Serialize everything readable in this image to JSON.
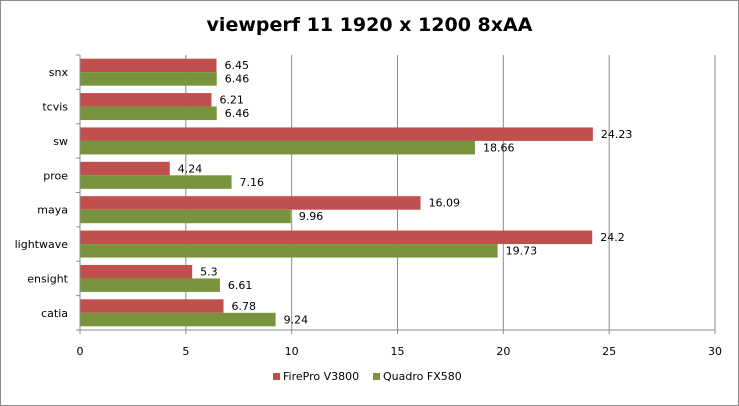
{
  "chart_data": {
    "type": "bar",
    "orientation": "horizontal",
    "title": "viewperf 11 1920 x 1200 8xAA",
    "categories": [
      "snx",
      "tcvis",
      "sw",
      "proe",
      "maya",
      "lightwave",
      "ensight",
      "catia"
    ],
    "series": [
      {
        "name": "FirePro V3800",
        "color": "#c0504d",
        "values": [
          6.45,
          6.21,
          24.23,
          4.24,
          16.09,
          24.2,
          5.3,
          6.78
        ]
      },
      {
        "name": "Quadro FX580",
        "color": "#77933c",
        "values": [
          6.46,
          6.46,
          18.66,
          7.16,
          9.96,
          19.73,
          6.61,
          9.24
        ]
      }
    ],
    "xlim": [
      0,
      30
    ],
    "xticks": [
      0,
      5,
      10,
      15,
      20,
      25,
      30
    ],
    "grid": true,
    "legend_position": "bottom"
  }
}
